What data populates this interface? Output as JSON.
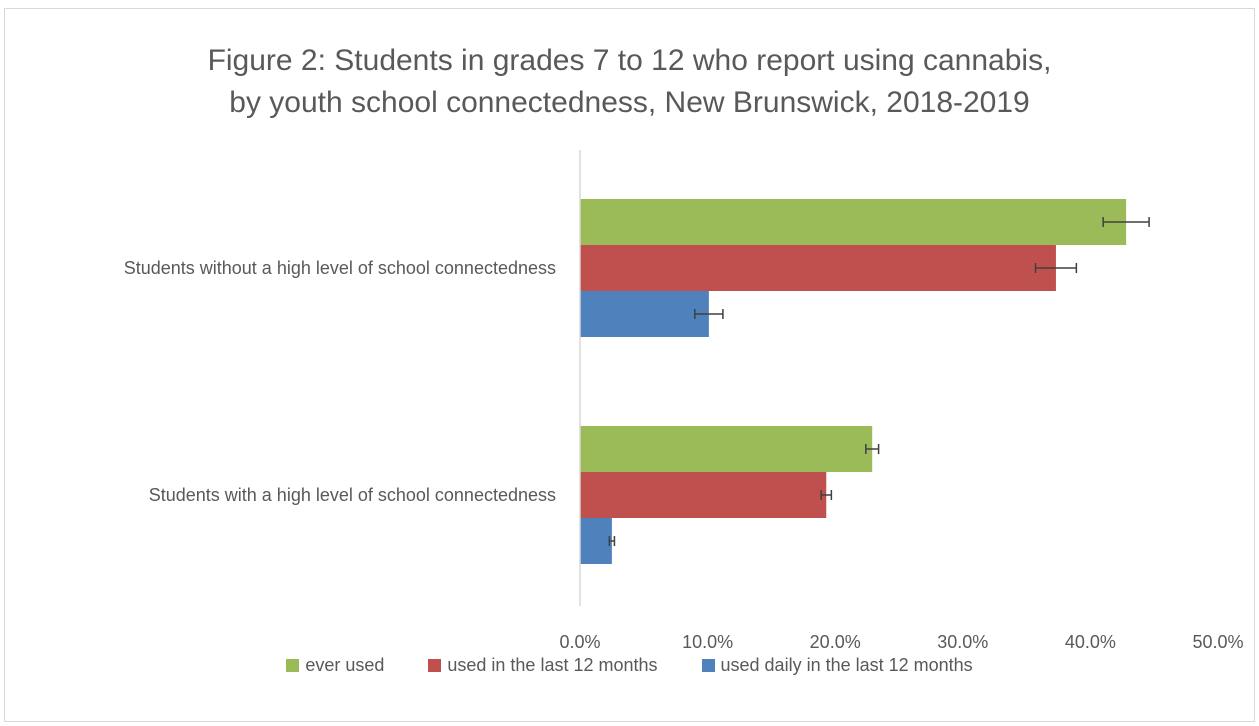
{
  "chart_data": {
    "type": "bar",
    "orientation": "horizontal",
    "title_lines": [
      "Figure 2: Students in grades 7 to 12 who report using cannabis,",
      "by youth school connectedness, New Brunswick, 2018-2019"
    ],
    "categories": [
      "Students without a high level of school connectedness",
      "Students with a high level of school connectedness"
    ],
    "series": [
      {
        "name": "ever used",
        "color": "#9bbb59",
        "values": [
          42.8,
          22.9
        ],
        "error": [
          1.8,
          0.5
        ]
      },
      {
        "name": "used in the last 12 months",
        "color": "#c0504d",
        "values": [
          37.3,
          19.3
        ],
        "error": [
          1.6,
          0.4
        ]
      },
      {
        "name": "used daily in the last 12 months",
        "color": "#4f81bd",
        "values": [
          10.1,
          2.5
        ],
        "error": [
          1.1,
          0.2
        ]
      }
    ],
    "x_ticks": [
      "0.0%",
      "10.0%",
      "20.0%",
      "30.0%",
      "40.0%",
      "50.0%"
    ],
    "xlim": [
      0,
      50
    ],
    "xlabel": "",
    "ylabel": "",
    "grid": false,
    "legend_position": "bottom"
  }
}
